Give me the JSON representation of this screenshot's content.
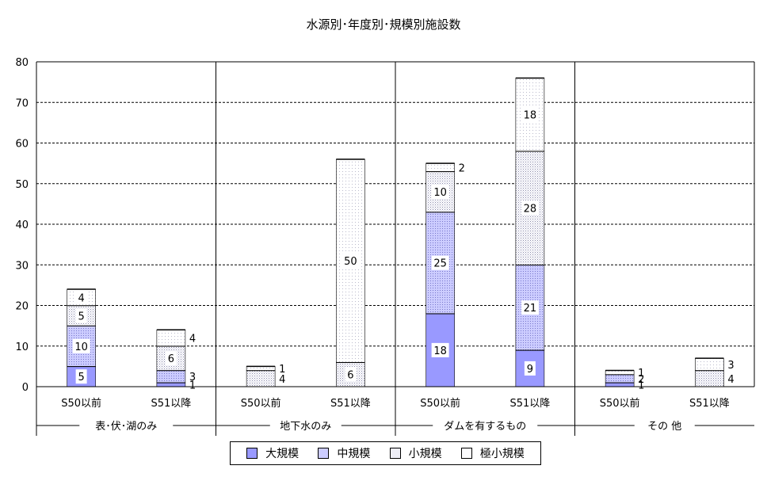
{
  "chart_data": {
    "type": "bar",
    "stacked": true,
    "title": "水源別･年度別･規模別施設数",
    "ylim": [
      0,
      80
    ],
    "yticks": [
      0,
      10,
      20,
      30,
      40,
      50,
      60,
      70,
      80
    ],
    "grid": true,
    "legend_position": "bottom",
    "groups": [
      {
        "label": "表･伏･湖のみ",
        "categories": [
          "S50以前",
          "S51以降"
        ]
      },
      {
        "label": "地下水のみ",
        "categories": [
          "S50以前",
          "S51以降"
        ]
      },
      {
        "label": "ダムを有するもの",
        "categories": [
          "S50以前",
          "S51以降"
        ]
      },
      {
        "label": "その 他",
        "categories": [
          "S50以前",
          "S51以降"
        ]
      }
    ],
    "categories": [
      "S50以前",
      "S51以降",
      "S50以前",
      "S51以降",
      "S50以前",
      "S51以降",
      "S50以前",
      "S51以降"
    ],
    "series": [
      {
        "name": "大規模",
        "color": "#9999ff",
        "values": [
          5,
          1,
          0,
          0,
          18,
          9,
          1,
          0
        ]
      },
      {
        "name": "中規模",
        "color": "#ccccff",
        "values": [
          10,
          3,
          0,
          0,
          25,
          21,
          2,
          0
        ]
      },
      {
        "name": "小規模",
        "color": "#e4e4f0",
        "values": [
          5,
          6,
          4,
          6,
          10,
          28,
          0,
          4
        ]
      },
      {
        "name": "極小規模",
        "color": "#f4f4f8",
        "values": [
          4,
          4,
          1,
          50,
          2,
          18,
          1,
          3
        ]
      }
    ]
  }
}
